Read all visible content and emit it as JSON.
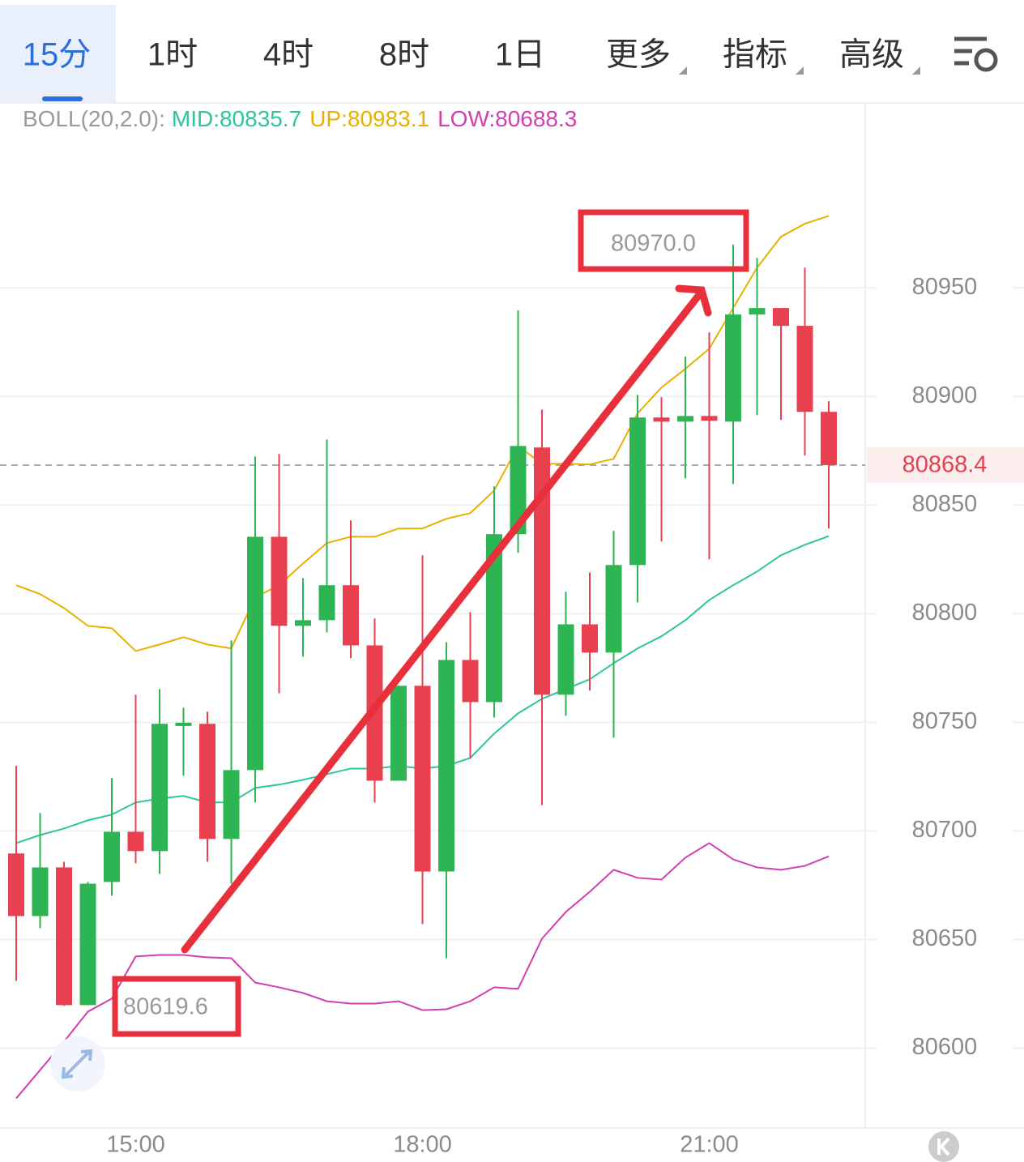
{
  "tabs": [
    "15分",
    "1时",
    "4时",
    "8时",
    "1日",
    "更多",
    "指标",
    "高级"
  ],
  "chart_data": {
    "type": "candlestick",
    "indicator": {
      "label": "BOLL(20,2.0):",
      "label_color": "#9a9a9a",
      "items": [
        {
          "text": "MID:80835.7",
          "color": "#2ec4a0"
        },
        {
          "text": "UP:80983.1",
          "color": "#e8b000"
        },
        {
          "text": "LOW:80688.3",
          "color": "#d040b0"
        }
      ]
    },
    "categories": [
      null,
      null,
      null,
      null,
      null,
      "15:00",
      null,
      null,
      null,
      null,
      null,
      null,
      null,
      null,
      null,
      null,
      null,
      "18:00",
      null,
      null,
      null,
      null,
      null,
      null,
      null,
      null,
      null,
      null,
      null,
      "21:00",
      null,
      null,
      null,
      null,
      null
    ],
    "open": [
      80689.6,
      80660.8,
      80683.2,
      80619.8,
      80676.5,
      80699.6,
      80690.7,
      80749.3,
      80749.3,
      80696.3,
      80728.0,
      80835.4,
      80794.4,
      80797.0,
      80813.1,
      80785.4,
      80723.1,
      80766.8,
      80681.3,
      80778.7,
      80759.3,
      80836.6,
      80876.5,
      80762.7,
      80795.1,
      80782.1,
      80822.4,
      80890.3,
      80888.4,
      80891.0,
      80888.4,
      80937.7,
      80940.7,
      80932.5,
      80892.9
    ],
    "high": [
      80729.9,
      80708.2,
      80685.8,
      80676.5,
      80724.3,
      80762.7,
      80765.3,
      80756.7,
      80754.9,
      80787.7,
      80872.4,
      80873.5,
      80816.4,
      80880.2,
      80842.9,
      80797.8,
      80767.0,
      80826.9,
      80786.9,
      80800.7,
      80858.6,
      80939.6,
      80894.0,
      80810.1,
      80819.0,
      80838.1,
      80900.7,
      80899.6,
      80918.3,
      80929.5,
      80970.0,
      80963.8,
      80940.7,
      80959.3,
      80897.8
    ],
    "low": [
      80631.0,
      80655.2,
      80619.6,
      80619.8,
      80670.1,
      80685.1,
      80680.2,
      80725.4,
      80685.8,
      80675.7,
      80713.1,
      80763.4,
      80780.2,
      80791.4,
      80779.5,
      80713.1,
      80723.1,
      80657.1,
      80641.4,
      80733.2,
      80752.2,
      80828.0,
      80711.9,
      80753.0,
      80764.6,
      80742.9,
      80805.2,
      80833.2,
      80862.3,
      80825.0,
      80859.7,
      80891.4,
      80889.2,
      80872.8,
      80839.2
    ],
    "close": [
      80660.8,
      80683.2,
      80619.8,
      80675.7,
      80699.6,
      80690.7,
      80749.3,
      80749.8,
      80696.3,
      80728.0,
      80835.4,
      80794.4,
      80797.0,
      80813.1,
      80785.4,
      80723.1,
      80766.8,
      80681.3,
      80778.7,
      80759.3,
      80836.6,
      80877.2,
      80762.7,
      80795.1,
      80782.1,
      80822.4,
      80890.3,
      80888.4,
      80891.0,
      80888.8,
      80937.7,
      80940.7,
      80932.5,
      80892.9,
      80868.4
    ],
    "up_color": "#2db553",
    "down_color": "#e8404f",
    "bands": [
      {
        "color": "#e8b000",
        "values": [
          80813.1,
          80809.0,
          80802.6,
          80794.4,
          80793.3,
          80782.8,
          80785.8,
          80789.2,
          80785.8,
          80784.0,
          80807.5,
          80813.1,
          80823.1,
          80832.5,
          80835.4,
          80835.4,
          80839.2,
          80839.2,
          80843.7,
          80846.3,
          80856.7,
          80877.2,
          80869.0,
          80869.0,
          80868.7,
          80871.3,
          80892.2,
          80904.1,
          80912.7,
          80922.0,
          80940.7,
          80959.3,
          80973.5,
          80979.5,
          80983.1
        ]
      },
      {
        "color": "#2ec4a0",
        "values": [
          80694.4,
          80698.1,
          80701.1,
          80704.9,
          80707.5,
          80713.1,
          80714.9,
          80716.1,
          80713.1,
          80713.1,
          80719.8,
          80721.3,
          80723.5,
          80726.1,
          80728.7,
          80728.7,
          80729.9,
          80728.7,
          80729.9,
          80733.6,
          80744.8,
          80754.1,
          80760.8,
          80765.3,
          80769.8,
          80777.2,
          80784.0,
          80789.6,
          80797.0,
          80806.3,
          80813.1,
          80819.4,
          80826.9,
          80831.7,
          80835.7
        ]
      },
      {
        "color": "#d040b0",
        "values": [
          80576.9,
          80589.9,
          80603.0,
          80616.8,
          80622.8,
          80642.2,
          80642.9,
          80642.9,
          80641.8,
          80641.4,
          80630.2,
          80628.0,
          80625.4,
          80621.6,
          80620.5,
          80620.5,
          80621.6,
          80617.5,
          80617.9,
          80621.6,
          80628.0,
          80627.3,
          80650.4,
          80662.7,
          80672.0,
          80682.1,
          80678.4,
          80677.6,
          80687.7,
          80694.4,
          80686.9,
          80683.2,
          80682.1,
          80683.9,
          80688.3
        ]
      }
    ],
    "current_price": 80868.4,
    "current_color": "#e8404f",
    "annotations": [
      "80970.0",
      "80619.6"
    ],
    "ylim": [
      80564,
      81034
    ],
    "yticks": [
      80600,
      80650,
      80700,
      80750,
      80800,
      80850,
      80900,
      80950
    ],
    "grid": true
  }
}
